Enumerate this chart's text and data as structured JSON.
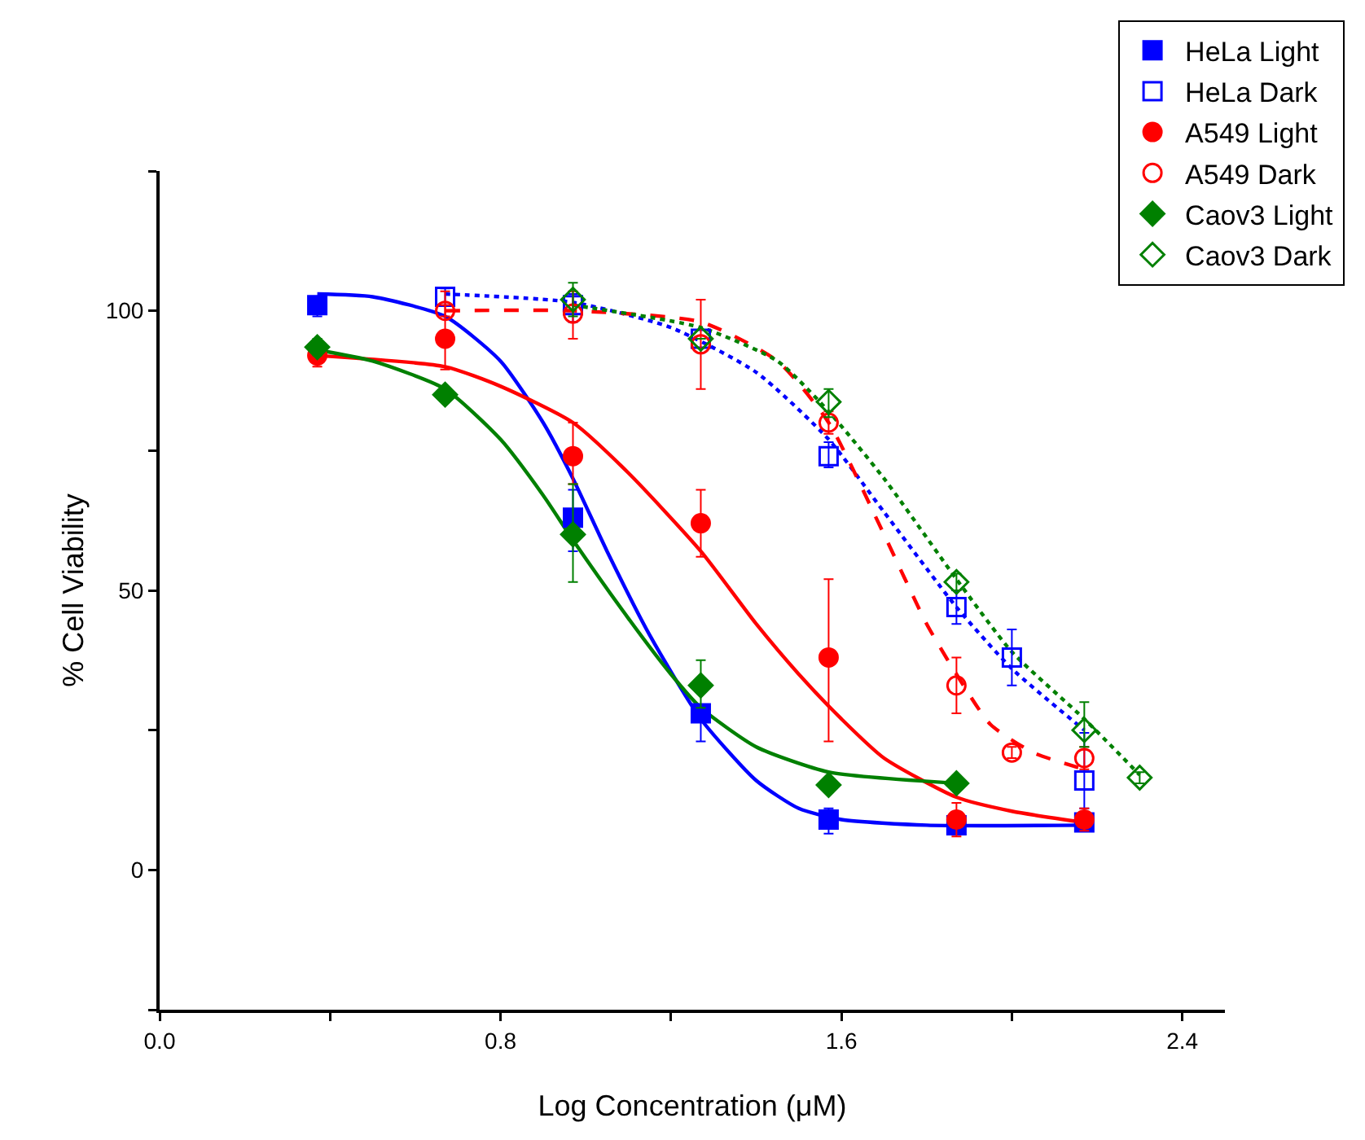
{
  "chart_data": {
    "type": "scatter",
    "xlabel": "Log Concentration (μM)",
    "ylabel": "% Cell Viability",
    "xlim": [
      0,
      2.5
    ],
    "ylim": [
      -25,
      125
    ],
    "xticks": [
      {
        "value": 0,
        "label": "0.0"
      },
      {
        "value": 0.4,
        "label": null
      },
      {
        "value": 0.8,
        "label": "0.8"
      },
      {
        "value": 1.2,
        "label": null
      },
      {
        "value": 1.6,
        "label": "1.6"
      },
      {
        "value": 2.0,
        "label": null
      },
      {
        "value": 2.4,
        "label": "2.4"
      }
    ],
    "yticks": [
      {
        "value": -25,
        "label": null
      },
      0,
      {
        "value": 25,
        "label": null
      },
      50,
      {
        "value": 75,
        "label": null
      },
      100,
      {
        "value": 125,
        "label": null
      }
    ],
    "grid": false,
    "legend": "top right",
    "series": [
      {
        "name": "HeLa Light",
        "color": "#0000ff",
        "marker": "square",
        "x": [
          0.37,
          0.97,
          1.27,
          1.57,
          1.87,
          2.17
        ],
        "values": [
          101,
          63,
          28,
          9,
          8,
          8.5
        ],
        "errors": [
          [
            99,
            101
          ],
          [
            57,
            68
          ],
          [
            23,
            28
          ],
          [
            6.5,
            11
          ],
          null,
          [
            7,
            10
          ]
        ]
      },
      {
        "name": "HeLa Dark",
        "color": "#0000ff",
        "marker": "square",
        "x": [
          0.67,
          0.97,
          1.27,
          1.57,
          1.87,
          2.0,
          2.17
        ],
        "values": [
          102.5,
          101,
          95,
          74,
          47,
          38,
          16
        ],
        "errors": [
          [
            101,
            104
          ],
          [
            98,
            103
          ],
          null,
          [
            72,
            76.5
          ],
          [
            44,
            50
          ],
          [
            33,
            43
          ],
          [
            11,
            24.5
          ]
        ]
      },
      {
        "name": "A549 Light",
        "color": "#ff0000",
        "marker": "circle",
        "x": [
          0.37,
          0.67,
          0.97,
          1.27,
          1.57,
          1.87,
          2.17
        ],
        "values": [
          92,
          95,
          74,
          62,
          38,
          9,
          9
        ],
        "errors": [
          [
            90,
            94
          ],
          [
            89.5,
            103.5
          ],
          [
            69,
            80
          ],
          [
            56,
            68
          ],
          [
            23,
            52
          ],
          [
            6,
            12
          ],
          [
            7,
            11
          ]
        ]
      },
      {
        "name": "A549 Dark",
        "color": "#ff0000",
        "marker": "circle",
        "x": [
          0.67,
          0.97,
          1.27,
          1.57,
          1.87,
          2.0,
          2.17
        ],
        "values": [
          100,
          99.5,
          94,
          80,
          33,
          21,
          20
        ],
        "errors": [
          [
            99,
            101
          ],
          [
            95,
            103.5
          ],
          [
            86,
            102
          ],
          [
            78,
            82
          ],
          [
            28,
            38
          ],
          [
            20,
            22
          ],
          [
            18,
            22
          ]
        ]
      },
      {
        "name": "Caov3 Light",
        "color": "#008000",
        "marker": "diamond",
        "x": [
          0.37,
          0.67,
          0.97,
          1.27,
          1.57,
          1.87
        ],
        "values": [
          93.5,
          85,
          60,
          33,
          15.2,
          15.5
        ],
        "errors": [
          [
            92,
            95
          ],
          null,
          [
            51.5,
            69
          ],
          [
            29,
            37.5
          ],
          null,
          null
        ]
      },
      {
        "name": "Caov3 Dark",
        "color": "#008000",
        "marker": "diamond",
        "x": [
          0.97,
          1.27,
          1.57,
          1.87,
          2.17,
          2.3
        ],
        "values": [
          102,
          95,
          83.7,
          51.5,
          25,
          16.5
        ],
        "errors": [
          [
            99,
            105
          ],
          null,
          [
            81,
            86
          ],
          [
            50,
            53
          ],
          [
            22,
            30
          ],
          [
            15.5,
            17.5
          ]
        ]
      },
      {
        "type": "line",
        "color": "#0000ff",
        "line_style": "solid",
        "x": [
          0.37,
          0.5,
          0.67,
          0.8,
          0.9,
          0.97,
          1.05,
          1.15,
          1.27,
          1.4,
          1.5,
          1.6,
          1.8,
          2.17
        ],
        "values": [
          103,
          102.5,
          99,
          91,
          80,
          70,
          57,
          42,
          27,
          16,
          11,
          9,
          8,
          8
        ]
      },
      {
        "type": "line",
        "color": "#ff0000",
        "line_style": "solid",
        "x": [
          0.37,
          0.67,
          0.8,
          0.97,
          1.1,
          1.27,
          1.4,
          1.5,
          1.6,
          1.7,
          1.87,
          2.0,
          2.17
        ],
        "values": [
          92,
          90,
          86.5,
          80,
          71,
          57,
          44,
          35,
          27,
          20,
          13,
          10.5,
          8.5
        ]
      },
      {
        "type": "line",
        "color": "#008000",
        "line_style": "solid",
        "x": [
          0.37,
          0.5,
          0.67,
          0.8,
          0.9,
          0.97,
          1.1,
          1.2,
          1.27,
          1.4,
          1.57,
          1.87
        ],
        "values": [
          93,
          91,
          86,
          77,
          67,
          59,
          45,
          35,
          29,
          22,
          17.5,
          15.5
        ]
      },
      {
        "type": "line",
        "color": "#0000ff",
        "line_style": "dotted",
        "x": [
          0.67,
          0.97,
          1.2,
          1.4,
          1.57,
          1.7,
          1.87,
          2.0,
          2.17
        ],
        "values": [
          103,
          101.5,
          97,
          89,
          77,
          64,
          47,
          36,
          25
        ]
      },
      {
        "type": "line",
        "color": "#ff0000",
        "line_style": "dashed",
        "x": [
          0.67,
          0.97,
          1.27,
          1.45,
          1.57,
          1.7,
          1.8,
          1.87,
          1.95,
          2.05,
          2.17
        ],
        "values": [
          100,
          100,
          98,
          91,
          80,
          60,
          44,
          35,
          26,
          21,
          18
        ]
      },
      {
        "type": "line",
        "color": "#008000",
        "line_style": "dotted",
        "x": [
          0.97,
          1.27,
          1.45,
          1.57,
          1.7,
          1.87,
          2.0,
          2.17,
          2.3
        ],
        "values": [
          101,
          97,
          91,
          82,
          70,
          52,
          39,
          27,
          17
        ]
      }
    ]
  }
}
